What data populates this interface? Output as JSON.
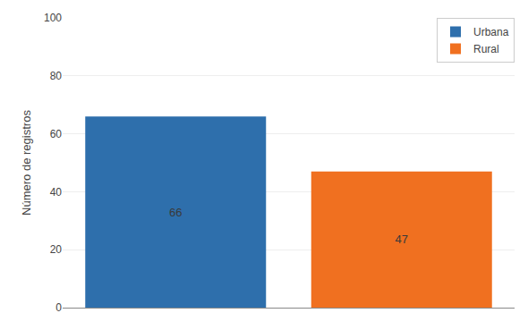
{
  "chart_data": {
    "type": "bar",
    "categories": [
      "Urbana",
      "Rural"
    ],
    "values": [
      66,
      47
    ],
    "colors": [
      "#2e6fac",
      "#f07020"
    ],
    "ylabel": "Número de registros",
    "ylim": [
      0,
      100
    ],
    "yticks": [
      0,
      20,
      40,
      60,
      80,
      100
    ],
    "grid": true,
    "legend": "upper right",
    "data_labels": true,
    "tick_labels": "y"
  }
}
